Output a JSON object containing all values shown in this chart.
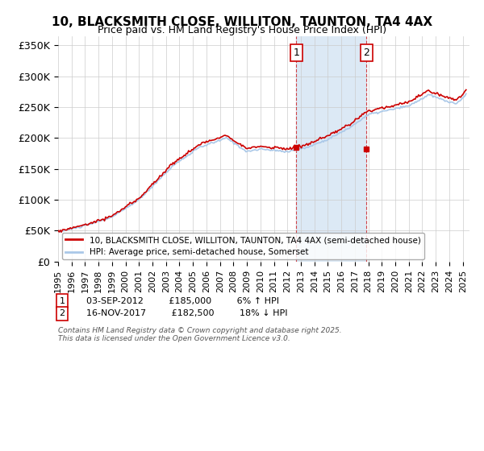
{
  "title": "10, BLACKSMITH CLOSE, WILLITON, TAUNTON, TA4 4AX",
  "subtitle": "Price paid vs. HM Land Registry's House Price Index (HPI)",
  "ylabel_ticks": [
    "£0",
    "£50K",
    "£100K",
    "£150K",
    "£200K",
    "£250K",
    "£300K",
    "£350K"
  ],
  "ytick_values": [
    0,
    50000,
    100000,
    150000,
    200000,
    250000,
    300000,
    350000
  ],
  "ylim": [
    0,
    365000
  ],
  "xlim_start": 1995,
  "xlim_end": 2025.5,
  "purchase1": {
    "date_label": "03-SEP-2012",
    "price": 185000,
    "year": 2012.67,
    "label": "1",
    "pct": "6% ↑ HPI"
  },
  "purchase2": {
    "date_label": "16-NOV-2017",
    "price": 182500,
    "year": 2017.87,
    "label": "2",
    "pct": "18% ↓ HPI"
  },
  "legend_red_label": "10, BLACKSMITH CLOSE, WILLITON, TAUNTON, TA4 4AX (semi-detached house)",
  "legend_blue_label": "HPI: Average price, semi-detached house, Somerset",
  "footer": "Contains HM Land Registry data © Crown copyright and database right 2025.\nThis data is licensed under the Open Government Licence v3.0.",
  "red_color": "#cc0000",
  "blue_color": "#aac8e8",
  "bg_color": "#ffffff",
  "grid_color": "#cccccc",
  "shaded_region_color": "#dce9f5"
}
